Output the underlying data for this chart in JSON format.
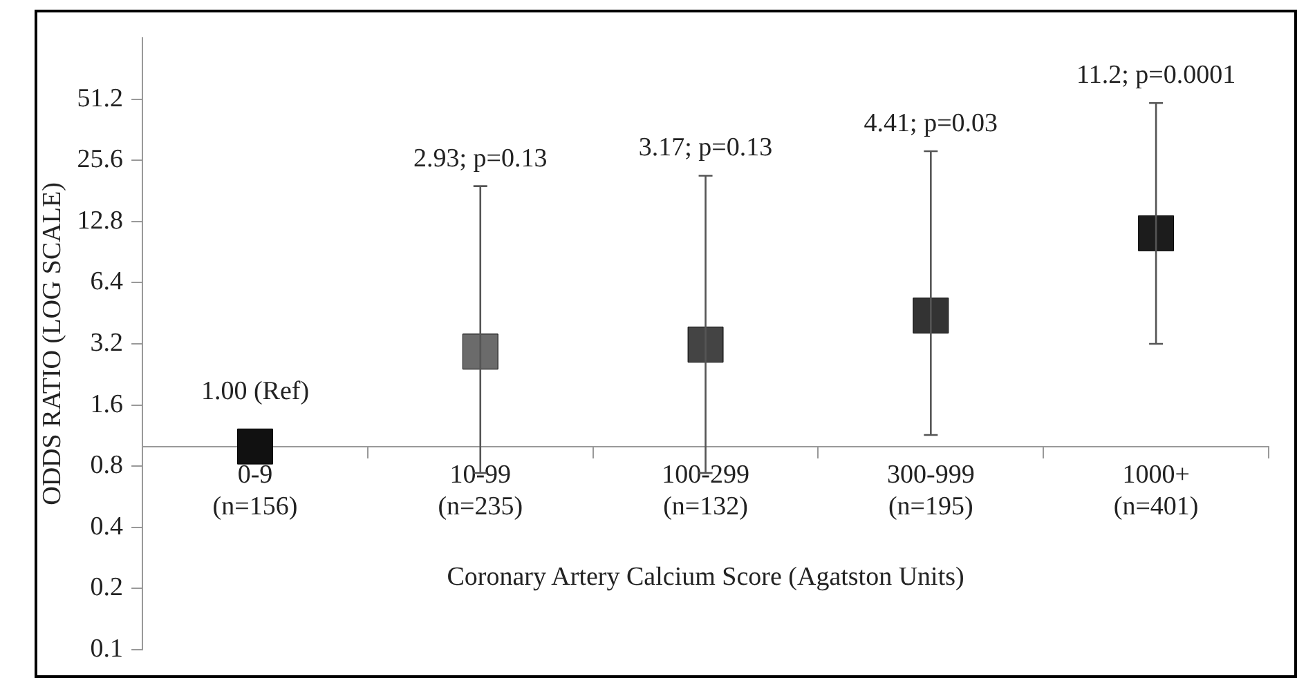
{
  "chart_data": {
    "type": "scatter",
    "xlabel": "Coronary Artery Calcium Score (Agatston Units)",
    "ylabel": "ODDS RATIO (LOG SCALE)",
    "categories": [
      "0-9\n(n=156)",
      "10-99\n(n=235)",
      "100-299\n(n=132)",
      "300-999\n(n=195)",
      "1000+\n(n=401)"
    ],
    "values": [
      1.0,
      2.93,
      3.17,
      4.41,
      11.2
    ],
    "colors": [
      "#111111",
      "#6b6b6b",
      "#444444",
      "#333333",
      "#1c1c1c"
    ],
    "errors": [
      null,
      [
        0.74,
        19.1
      ],
      [
        0.74,
        21.5
      ],
      [
        1.14,
        28.4
      ],
      [
        3.2,
        49
      ]
    ],
    "annotations": [
      {
        "text": "1.00 (Ref)",
        "x": "0-9\n(n=156)",
        "y": 1.0
      },
      {
        "text": "2.93; p=0.13",
        "x": "10-99\n(n=235)",
        "y": 19.1
      },
      {
        "text": "3.17; p=0.13",
        "x": "100-299\n(n=132)",
        "y": 21.5
      },
      {
        "text": "4.41; p=0.03",
        "x": "300-999\n(n=195)",
        "y": 28.4
      },
      {
        "text": "11.2; p=0.0001",
        "x": "1000+\n(n=401)",
        "y": 49
      }
    ],
    "ylim": [
      0.1,
      102.4
    ],
    "yticks": [
      0.1,
      0.2,
      0.4,
      0.8,
      1.6,
      3.2,
      6.4,
      12.8,
      25.6,
      51.2
    ],
    "log": true,
    "marker": "square"
  }
}
